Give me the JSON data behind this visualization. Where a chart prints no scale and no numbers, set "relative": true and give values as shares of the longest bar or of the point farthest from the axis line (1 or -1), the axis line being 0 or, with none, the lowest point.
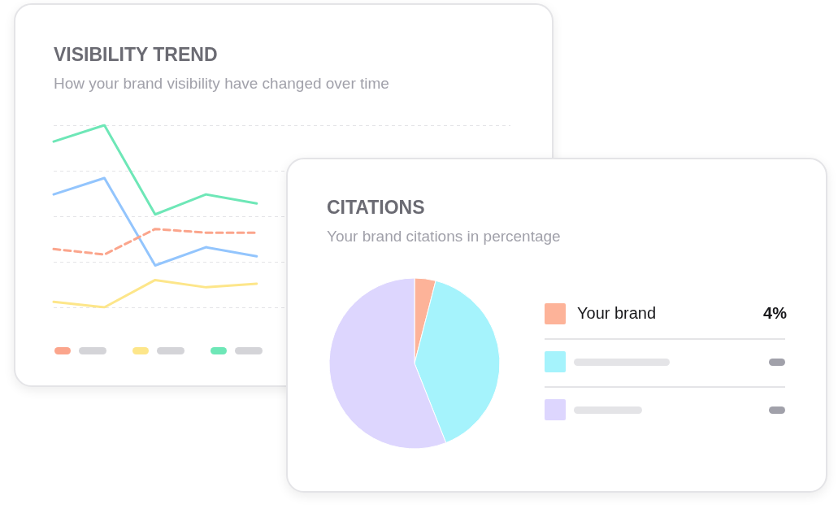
{
  "chart_data": [
    {
      "type": "line",
      "title": "VISIBILITY TREND",
      "subtitle": "How your brand visibility have changed over time",
      "relative": true,
      "grid": "y",
      "categories": [
        null,
        null,
        null,
        null,
        null,
        null,
        null,
        null,
        null,
        null
      ],
      "series": [
        {
          "color": "#6ee7b7",
          "values": [
            0.91,
            1,
            0.51,
            0.62,
            0.57,
            null,
            null,
            null,
            null,
            null
          ]
        },
        {
          "color": "#93c5fd",
          "values": [
            0.62,
            0.71,
            0.23,
            0.33,
            0.28,
            null,
            null,
            null,
            null,
            null
          ]
        },
        {
          "color": "#fba58c",
          "line_style": "dashed",
          "values": [
            0.32,
            0.29,
            0.43,
            0.41,
            0.41,
            null,
            null,
            null,
            null,
            null
          ]
        },
        {
          "color": "#fde68a",
          "values": [
            0.03,
            0,
            0.15,
            0.11,
            0.13,
            null,
            null,
            null,
            null,
            null
          ]
        }
      ]
    },
    {
      "type": "pie",
      "title": "CITATIONS",
      "subtitle": "Your brand citations in percentage",
      "categories": [
        "Your brand",
        null,
        null
      ],
      "values": [
        4,
        40,
        56
      ],
      "colors": [
        "#fdb399",
        "#a5f3fc",
        "#ddd6fe"
      ],
      "value_labels": [
        "4%",
        null,
        null
      ]
    }
  ]
}
